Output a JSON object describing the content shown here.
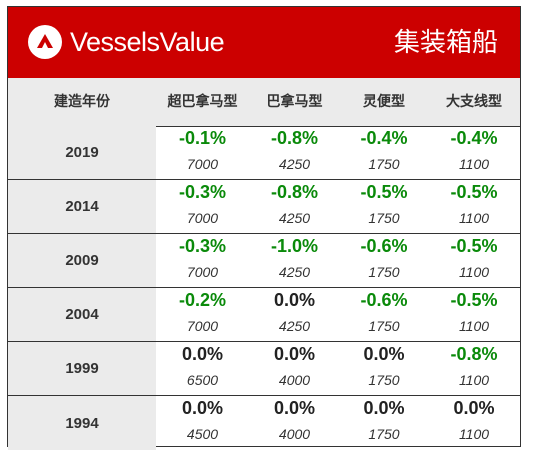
{
  "header": {
    "brand": "VesselsValue",
    "logo_icon": "vesselsvalue-logo-icon",
    "title": "集装箱船",
    "background": "#cc0000"
  },
  "columns": [
    "建造年份",
    "超巴拿马型",
    "巴拿马型",
    "灵便型",
    "大支线型"
  ],
  "colors": {
    "negative": "#0a8a0a",
    "zero": "#222222"
  },
  "rows": [
    {
      "year": "2019",
      "cells": [
        {
          "change": "-0.1%",
          "value": "7000"
        },
        {
          "change": "-0.8%",
          "value": "4250"
        },
        {
          "change": "-0.4%",
          "value": "1750"
        },
        {
          "change": "-0.4%",
          "value": "1100"
        }
      ]
    },
    {
      "year": "2014",
      "cells": [
        {
          "change": "-0.3%",
          "value": "7000"
        },
        {
          "change": "-0.8%",
          "value": "4250"
        },
        {
          "change": "-0.5%",
          "value": "1750"
        },
        {
          "change": "-0.5%",
          "value": "1100"
        }
      ]
    },
    {
      "year": "2009",
      "cells": [
        {
          "change": "-0.3%",
          "value": "7000"
        },
        {
          "change": "-1.0%",
          "value": "4250"
        },
        {
          "change": "-0.6%",
          "value": "1750"
        },
        {
          "change": "-0.5%",
          "value": "1100"
        }
      ]
    },
    {
      "year": "2004",
      "cells": [
        {
          "change": "-0.2%",
          "value": "7000"
        },
        {
          "change": "0.0%",
          "value": "4250"
        },
        {
          "change": "-0.6%",
          "value": "1750"
        },
        {
          "change": "-0.5%",
          "value": "1100"
        }
      ]
    },
    {
      "year": "1999",
      "cells": [
        {
          "change": "0.0%",
          "value": "6500"
        },
        {
          "change": "0.0%",
          "value": "4000"
        },
        {
          "change": "0.0%",
          "value": "1750"
        },
        {
          "change": "-0.8%",
          "value": "1100"
        }
      ]
    },
    {
      "year": "1994",
      "cells": [
        {
          "change": "0.0%",
          "value": "4500"
        },
        {
          "change": "0.0%",
          "value": "4000"
        },
        {
          "change": "0.0%",
          "value": "1750"
        },
        {
          "change": "0.0%",
          "value": "1100"
        }
      ]
    }
  ]
}
